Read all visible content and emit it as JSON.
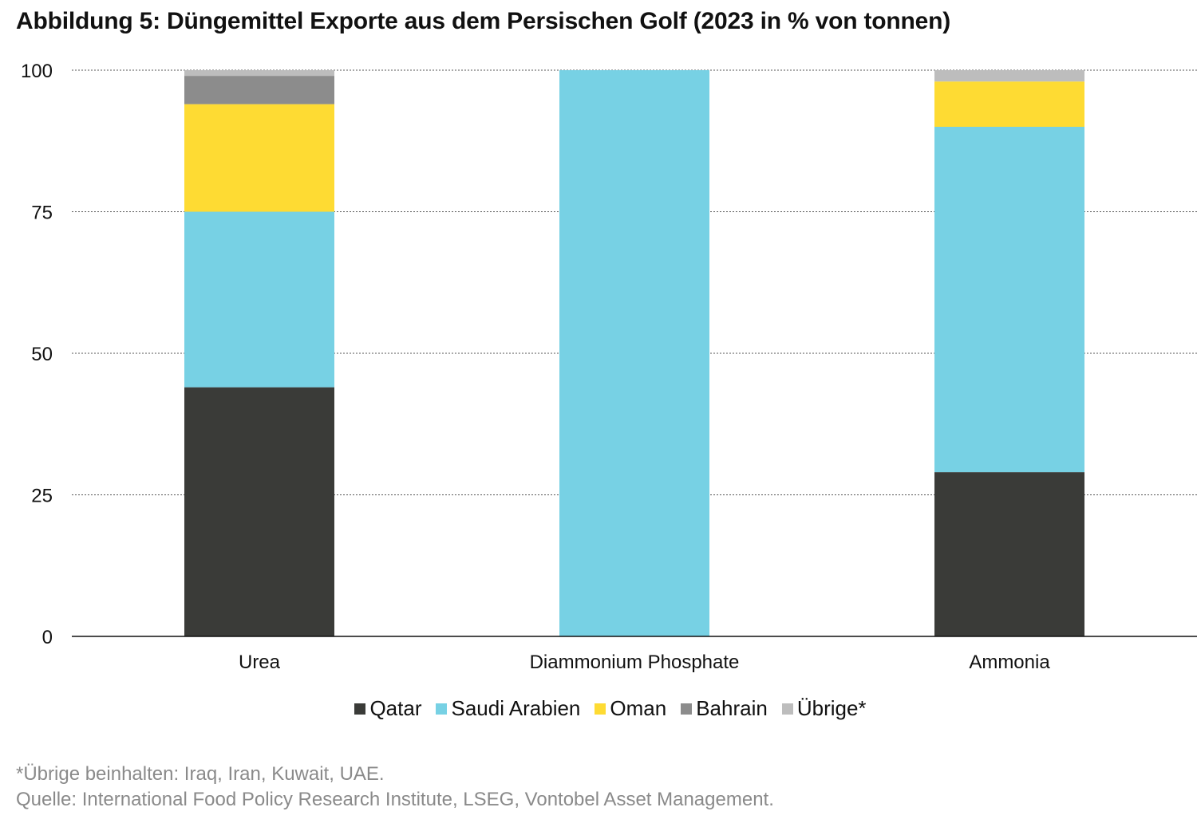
{
  "title": "Abbildung 5: Düngemittel Exporte aus dem Persischen Golf (2023 in % von tonnen)",
  "chart_data": {
    "type": "bar",
    "stacked": true,
    "categories": [
      "Urea",
      "Diammonium Phosphate",
      "Ammonia"
    ],
    "series": [
      {
        "name": "Qatar",
        "color": "#3a3b38",
        "values": [
          44,
          0,
          29
        ]
      },
      {
        "name": "Saudi Arabien",
        "color": "#77d1e4",
        "values": [
          31,
          100,
          61
        ]
      },
      {
        "name": "Oman",
        "color": "#fedb33",
        "values": [
          19,
          0,
          8
        ]
      },
      {
        "name": "Bahrain",
        "color": "#8c8c8c",
        "values": [
          5,
          0,
          0
        ]
      },
      {
        "name": "Übrige*",
        "color": "#bdbdbd",
        "values": [
          1,
          0,
          2
        ]
      }
    ],
    "ylim": [
      0,
      100
    ],
    "yticks": [
      0,
      25,
      50,
      75,
      100
    ],
    "grid": true,
    "legend": "bottom-center"
  },
  "footnotes": [
    "*Übrige beinhalten: Iraq, Iran, Kuwait, UAE.",
    "Quelle: International Food Policy Research Institute, LSEG, Vontobel Asset Management."
  ]
}
